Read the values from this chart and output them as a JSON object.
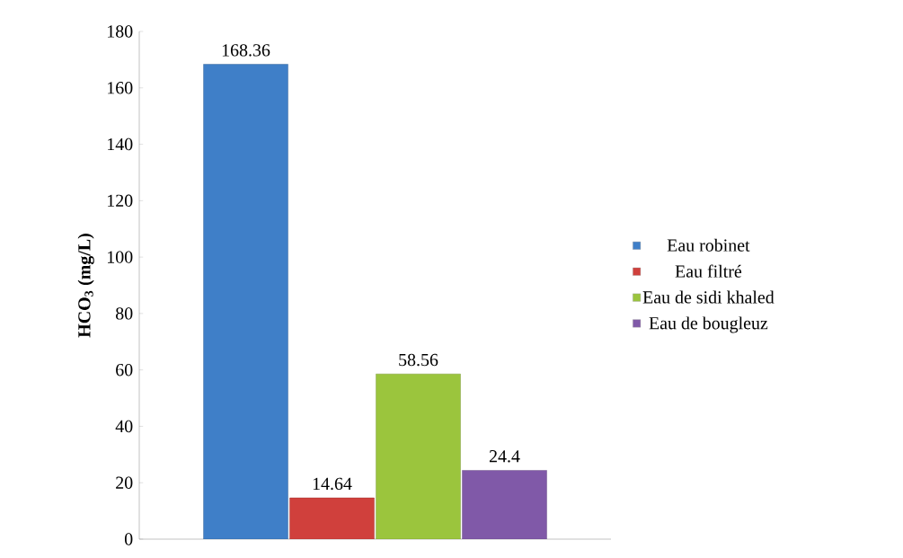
{
  "chart_data": {
    "type": "bar",
    "ylabel": "HCO$_{3}$ (mg/L)",
    "categories": [
      null
    ],
    "series": [
      {
        "name": "Eau robinet",
        "color": "#3f7fc8",
        "values": [
          168.36
        ]
      },
      {
        "name": "Eau filtré",
        "color": "#d0403c",
        "values": [
          14.64
        ]
      },
      {
        "name": "Eau  de sidi khaled",
        "color": "#9bc53d",
        "values": [
          58.56
        ]
      },
      {
        "name": "Eau de bougleuz",
        "color": "#8059a8",
        "values": [
          24.4
        ]
      }
    ],
    "ylim": [
      0,
      180
    ],
    "yticks": [
      0,
      20,
      40,
      60,
      80,
      100,
      120,
      140,
      160,
      180
    ],
    "data_labels": true,
    "legend": "right",
    "grid": false
  }
}
